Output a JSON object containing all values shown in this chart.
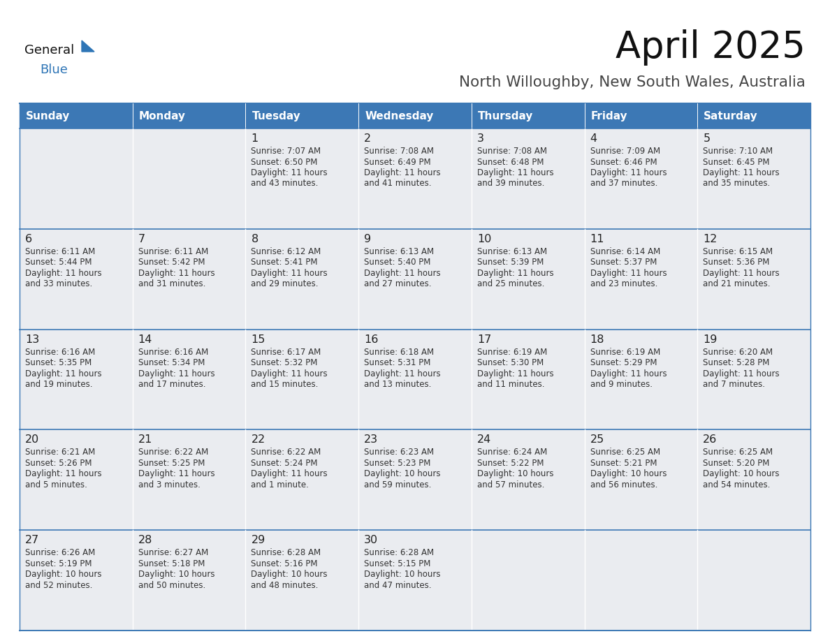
{
  "title": "April 2025",
  "subtitle": "North Willoughby, New South Wales, Australia",
  "days_of_week": [
    "Sunday",
    "Monday",
    "Tuesday",
    "Wednesday",
    "Thursday",
    "Friday",
    "Saturday"
  ],
  "header_bg": "#3C78B5",
  "header_text": "#FFFFFF",
  "cell_bg_light": "#EAECF0",
  "cell_bg_white": "#FFFFFF",
  "text_color": "#333333",
  "day_num_color": "#222222",
  "line_color": "#3C78B5",
  "title_color": "#111111",
  "subtitle_color": "#444444",
  "logo_general_color": "#111111",
  "logo_blue_color": "#2E75B6",
  "logo_triangle_color": "#2E75B6",
  "calendar_data": [
    [
      {
        "day": "",
        "info": ""
      },
      {
        "day": "",
        "info": ""
      },
      {
        "day": "1",
        "info": "Sunrise: 7:07 AM\nSunset: 6:50 PM\nDaylight: 11 hours\nand 43 minutes."
      },
      {
        "day": "2",
        "info": "Sunrise: 7:08 AM\nSunset: 6:49 PM\nDaylight: 11 hours\nand 41 minutes."
      },
      {
        "day": "3",
        "info": "Sunrise: 7:08 AM\nSunset: 6:48 PM\nDaylight: 11 hours\nand 39 minutes."
      },
      {
        "day": "4",
        "info": "Sunrise: 7:09 AM\nSunset: 6:46 PM\nDaylight: 11 hours\nand 37 minutes."
      },
      {
        "day": "5",
        "info": "Sunrise: 7:10 AM\nSunset: 6:45 PM\nDaylight: 11 hours\nand 35 minutes."
      }
    ],
    [
      {
        "day": "6",
        "info": "Sunrise: 6:11 AM\nSunset: 5:44 PM\nDaylight: 11 hours\nand 33 minutes."
      },
      {
        "day": "7",
        "info": "Sunrise: 6:11 AM\nSunset: 5:42 PM\nDaylight: 11 hours\nand 31 minutes."
      },
      {
        "day": "8",
        "info": "Sunrise: 6:12 AM\nSunset: 5:41 PM\nDaylight: 11 hours\nand 29 minutes."
      },
      {
        "day": "9",
        "info": "Sunrise: 6:13 AM\nSunset: 5:40 PM\nDaylight: 11 hours\nand 27 minutes."
      },
      {
        "day": "10",
        "info": "Sunrise: 6:13 AM\nSunset: 5:39 PM\nDaylight: 11 hours\nand 25 minutes."
      },
      {
        "day": "11",
        "info": "Sunrise: 6:14 AM\nSunset: 5:37 PM\nDaylight: 11 hours\nand 23 minutes."
      },
      {
        "day": "12",
        "info": "Sunrise: 6:15 AM\nSunset: 5:36 PM\nDaylight: 11 hours\nand 21 minutes."
      }
    ],
    [
      {
        "day": "13",
        "info": "Sunrise: 6:16 AM\nSunset: 5:35 PM\nDaylight: 11 hours\nand 19 minutes."
      },
      {
        "day": "14",
        "info": "Sunrise: 6:16 AM\nSunset: 5:34 PM\nDaylight: 11 hours\nand 17 minutes."
      },
      {
        "day": "15",
        "info": "Sunrise: 6:17 AM\nSunset: 5:32 PM\nDaylight: 11 hours\nand 15 minutes."
      },
      {
        "day": "16",
        "info": "Sunrise: 6:18 AM\nSunset: 5:31 PM\nDaylight: 11 hours\nand 13 minutes."
      },
      {
        "day": "17",
        "info": "Sunrise: 6:19 AM\nSunset: 5:30 PM\nDaylight: 11 hours\nand 11 minutes."
      },
      {
        "day": "18",
        "info": "Sunrise: 6:19 AM\nSunset: 5:29 PM\nDaylight: 11 hours\nand 9 minutes."
      },
      {
        "day": "19",
        "info": "Sunrise: 6:20 AM\nSunset: 5:28 PM\nDaylight: 11 hours\nand 7 minutes."
      }
    ],
    [
      {
        "day": "20",
        "info": "Sunrise: 6:21 AM\nSunset: 5:26 PM\nDaylight: 11 hours\nand 5 minutes."
      },
      {
        "day": "21",
        "info": "Sunrise: 6:22 AM\nSunset: 5:25 PM\nDaylight: 11 hours\nand 3 minutes."
      },
      {
        "day": "22",
        "info": "Sunrise: 6:22 AM\nSunset: 5:24 PM\nDaylight: 11 hours\nand 1 minute."
      },
      {
        "day": "23",
        "info": "Sunrise: 6:23 AM\nSunset: 5:23 PM\nDaylight: 10 hours\nand 59 minutes."
      },
      {
        "day": "24",
        "info": "Sunrise: 6:24 AM\nSunset: 5:22 PM\nDaylight: 10 hours\nand 57 minutes."
      },
      {
        "day": "25",
        "info": "Sunrise: 6:25 AM\nSunset: 5:21 PM\nDaylight: 10 hours\nand 56 minutes."
      },
      {
        "day": "26",
        "info": "Sunrise: 6:25 AM\nSunset: 5:20 PM\nDaylight: 10 hours\nand 54 minutes."
      }
    ],
    [
      {
        "day": "27",
        "info": "Sunrise: 6:26 AM\nSunset: 5:19 PM\nDaylight: 10 hours\nand 52 minutes."
      },
      {
        "day": "28",
        "info": "Sunrise: 6:27 AM\nSunset: 5:18 PM\nDaylight: 10 hours\nand 50 minutes."
      },
      {
        "day": "29",
        "info": "Sunrise: 6:28 AM\nSunset: 5:16 PM\nDaylight: 10 hours\nand 48 minutes."
      },
      {
        "day": "30",
        "info": "Sunrise: 6:28 AM\nSunset: 5:15 PM\nDaylight: 10 hours\nand 47 minutes."
      },
      {
        "day": "",
        "info": ""
      },
      {
        "day": "",
        "info": ""
      },
      {
        "day": "",
        "info": ""
      }
    ]
  ]
}
